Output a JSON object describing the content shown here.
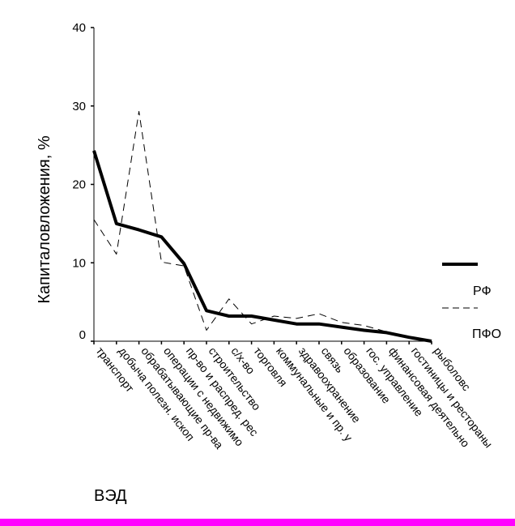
{
  "chart_data": {
    "type": "line",
    "title": "",
    "xlabel": "ВЭД",
    "ylabel": "Капиталовложения, %",
    "ylim": [
      0,
      40
    ],
    "yticks": [
      0,
      10,
      20,
      30,
      40
    ],
    "categories": [
      "транспорт",
      "добыча полезн. ископ",
      "обрабатывающие пр-ва",
      "операции с недвижимо",
      "пр-во и распред. рес",
      "строительство",
      "с/х-во",
      "торговля",
      "коммунальные и пр. у",
      "здравоохранение",
      "связь",
      "образование",
      "гос. управление",
      "финансовая деятельно",
      "гостиницы и рестораны",
      "рыболовс"
    ],
    "series": [
      {
        "name": "РФ",
        "style": "solid-thick",
        "values": [
          24.3,
          15.0,
          14.2,
          13.3,
          9.9,
          3.9,
          3.2,
          3.2,
          2.7,
          2.2,
          2.2,
          1.8,
          1.4,
          1.1,
          0.5,
          0.0
        ]
      },
      {
        "name": "ПФО",
        "style": "dashed-thin",
        "values": [
          15.5,
          11.1,
          29.3,
          10.1,
          9.6,
          1.4,
          5.4,
          2.2,
          3.2,
          2.9,
          3.5,
          2.4,
          2.0,
          1.2,
          0.6,
          0.0
        ]
      }
    ],
    "legend_position": "right",
    "grid": false
  },
  "colors": {
    "line": "#000000",
    "accent_bar": "#ff00ff"
  }
}
